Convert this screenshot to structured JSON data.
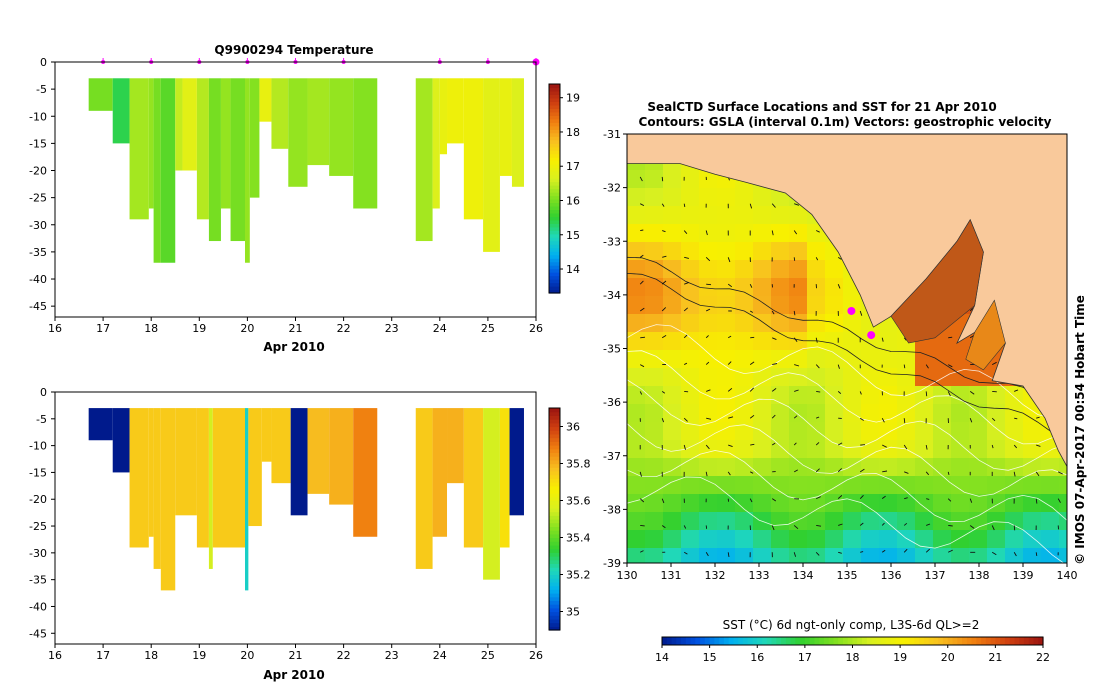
{
  "colors": {
    "background": "#ffffff",
    "land": "#f9c99b",
    "marker": "#ff00ff",
    "colormap": [
      "#001a8c",
      "#0050e0",
      "#00b0f0",
      "#20d8b8",
      "#30d030",
      "#80e020",
      "#d8f020",
      "#f8f000",
      "#f8c020",
      "#f08010",
      "#d04010",
      "#9a1410"
    ]
  },
  "chart_data": [
    {
      "type": "heatmap",
      "title": "Q9900294  Temperature",
      "xlabel": "Apr 2010",
      "ylabel": "",
      "xticks": [
        "16",
        "17",
        "18",
        "19",
        "20",
        "21",
        "22",
        "23",
        "24",
        "25",
        "26"
      ],
      "xlim": [
        16,
        26
      ],
      "yticks": [
        "0",
        "-5",
        "-10",
        "-15",
        "-20",
        "-25",
        "-30",
        "-35",
        "-40",
        "-45"
      ],
      "ylim": [
        -47,
        0
      ],
      "profile_days": [
        17,
        18,
        19,
        20,
        21,
        22,
        24,
        25,
        26
      ],
      "colorbar": {
        "ticks": [
          "14",
          "15",
          "16",
          "17",
          "18",
          "19"
        ],
        "range": [
          13.3,
          19.4
        ]
      },
      "columns": [
        {
          "x0": 16.7,
          "x1": 17.2,
          "depth": 9,
          "value": 16.0
        },
        {
          "x0": 17.2,
          "x1": 17.55,
          "depth": 15,
          "value": 15.4
        },
        {
          "x0": 17.55,
          "x1": 17.95,
          "depth": 29,
          "value": 16.3
        },
        {
          "x0": 17.95,
          "x1": 18.05,
          "depth": 27,
          "value": 16.2
        },
        {
          "x0": 18.05,
          "x1": 18.2,
          "depth": 37,
          "value": 16.0
        },
        {
          "x0": 18.2,
          "x1": 18.5,
          "depth": 37,
          "value": 15.8
        },
        {
          "x0": 18.5,
          "x1": 18.65,
          "depth": 20,
          "value": 16.5
        },
        {
          "x0": 18.65,
          "x1": 18.95,
          "depth": 20,
          "value": 16.8
        },
        {
          "x0": 18.95,
          "x1": 19.2,
          "depth": 29,
          "value": 16.4
        },
        {
          "x0": 19.2,
          "x1": 19.45,
          "depth": 33,
          "value": 16.0
        },
        {
          "x0": 19.45,
          "x1": 19.65,
          "depth": 27,
          "value": 16.2
        },
        {
          "x0": 19.65,
          "x1": 19.95,
          "depth": 33,
          "value": 16.0
        },
        {
          "x0": 19.95,
          "x1": 20.05,
          "depth": 37,
          "value": 16.2
        },
        {
          "x0": 20.05,
          "x1": 20.25,
          "depth": 25,
          "value": 16.1
        },
        {
          "x0": 20.25,
          "x1": 20.5,
          "depth": 11,
          "value": 16.9
        },
        {
          "x0": 20.5,
          "x1": 20.85,
          "depth": 16,
          "value": 16.4
        },
        {
          "x0": 20.85,
          "x1": 21.25,
          "depth": 23,
          "value": 16.2
        },
        {
          "x0": 21.25,
          "x1": 21.7,
          "depth": 19,
          "value": 16.3
        },
        {
          "x0": 21.7,
          "x1": 22.2,
          "depth": 21,
          "value": 16.2
        },
        {
          "x0": 22.2,
          "x1": 22.7,
          "depth": 27,
          "value": 16.1
        },
        {
          "x0": 23.5,
          "x1": 23.85,
          "depth": 33,
          "value": 16.3
        },
        {
          "x0": 23.85,
          "x1": 24.0,
          "depth": 27,
          "value": 16.7
        },
        {
          "x0": 24.0,
          "x1": 24.15,
          "depth": 17,
          "value": 16.9
        },
        {
          "x0": 24.15,
          "x1": 24.5,
          "depth": 15,
          "value": 17.0
        },
        {
          "x0": 24.5,
          "x1": 24.9,
          "depth": 29,
          "value": 17.0
        },
        {
          "x0": 24.9,
          "x1": 25.25,
          "depth": 35,
          "value": 16.8
        },
        {
          "x0": 25.25,
          "x1": 25.5,
          "depth": 21,
          "value": 16.9
        },
        {
          "x0": 25.5,
          "x1": 25.75,
          "depth": 23,
          "value": 16.7
        }
      ]
    },
    {
      "type": "heatmap",
      "title": "",
      "xlabel": "Apr 2010",
      "ylabel": "",
      "xticks": [
        "16",
        "17",
        "18",
        "19",
        "20",
        "21",
        "22",
        "23",
        "24",
        "25",
        "26"
      ],
      "xlim": [
        16,
        26
      ],
      "yticks": [
        "0",
        "-5",
        "-10",
        "-15",
        "-20",
        "-25",
        "-30",
        "-35",
        "-40",
        "-45"
      ],
      "ylim": [
        -47,
        0
      ],
      "colorbar": {
        "ticks": [
          "35",
          "35.2",
          "35.4",
          "35.6",
          "35.8",
          "36"
        ],
        "range": [
          34.9,
          36.1
        ]
      },
      "columns": [
        {
          "x0": 16.7,
          "x1": 17.2,
          "depth": 9,
          "value": 34.9
        },
        {
          "x0": 17.2,
          "x1": 17.55,
          "depth": 15,
          "value": 34.9
        },
        {
          "x0": 17.55,
          "x1": 17.95,
          "depth": 29,
          "value": 35.75
        },
        {
          "x0": 17.95,
          "x1": 18.05,
          "depth": 27,
          "value": 35.75
        },
        {
          "x0": 18.05,
          "x1": 18.2,
          "depth": 33,
          "value": 35.75
        },
        {
          "x0": 18.2,
          "x1": 18.5,
          "depth": 37,
          "value": 35.75
        },
        {
          "x0": 18.5,
          "x1": 18.95,
          "depth": 23,
          "value": 35.75
        },
        {
          "x0": 18.95,
          "x1": 19.2,
          "depth": 29,
          "value": 35.75
        },
        {
          "x0": 19.2,
          "x1": 19.28,
          "depth": 33,
          "value": 35.55
        },
        {
          "x0": 19.28,
          "x1": 19.95,
          "depth": 29,
          "value": 35.75
        },
        {
          "x0": 19.95,
          "x1": 20.02,
          "depth": 37,
          "value": 35.2
        },
        {
          "x0": 20.02,
          "x1": 20.3,
          "depth": 25,
          "value": 35.75
        },
        {
          "x0": 20.3,
          "x1": 20.5,
          "depth": 13,
          "value": 35.75
        },
        {
          "x0": 20.5,
          "x1": 20.9,
          "depth": 17,
          "value": 35.75
        },
        {
          "x0": 20.9,
          "x1": 21.25,
          "depth": 23,
          "value": 34.9
        },
        {
          "x0": 21.25,
          "x1": 21.7,
          "depth": 19,
          "value": 35.78
        },
        {
          "x0": 21.7,
          "x1": 22.2,
          "depth": 21,
          "value": 35.8
        },
        {
          "x0": 22.2,
          "x1": 22.7,
          "depth": 27,
          "value": 35.88
        },
        {
          "x0": 23.5,
          "x1": 23.85,
          "depth": 33,
          "value": 35.75
        },
        {
          "x0": 23.85,
          "x1": 24.15,
          "depth": 27,
          "value": 35.8
        },
        {
          "x0": 24.15,
          "x1": 24.5,
          "depth": 17,
          "value": 35.8
        },
        {
          "x0": 24.5,
          "x1": 24.9,
          "depth": 29,
          "value": 35.75
        },
        {
          "x0": 24.9,
          "x1": 25.25,
          "depth": 35,
          "value": 35.55
        },
        {
          "x0": 25.25,
          "x1": 25.45,
          "depth": 29,
          "value": 35.7
        },
        {
          "x0": 25.45,
          "x1": 25.75,
          "depth": 23,
          "value": 34.9
        }
      ]
    },
    {
      "type": "heatmap",
      "title": "SealCTD Surface Locations and SST for 21 Apr 2010",
      "subtitle": "Contours: GSLA (interval 0.1m) Vectors: geostrophic velocity",
      "xlabel": "",
      "ylabel": "",
      "xticks": [
        "130",
        "131",
        "132",
        "133",
        "134",
        "135",
        "136",
        "137",
        "138",
        "139",
        "140"
      ],
      "xlim": [
        130,
        140
      ],
      "yticks": [
        "-31",
        "-32",
        "-33",
        "-34",
        "-35",
        "-36",
        "-37",
        "-38",
        "-39"
      ],
      "ylim": [
        -39,
        -31
      ],
      "colorbar": {
        "label": "SST (°C) 6d ngt-only comp, L3S-6d QL>=2",
        "ticks": [
          "14",
          "15",
          "16",
          "17",
          "18",
          "19",
          "20",
          "21",
          "22"
        ],
        "range": [
          14,
          22
        ]
      },
      "side_label": "© IMOS 07-Apr-2017 00:54 Hobart Time",
      "seal_locations": {
        "lon": [
          135.1,
          135.55
        ],
        "lat": [
          -34.3,
          -34.75
        ]
      },
      "coastline": [
        [
          132.7,
          -31.9
        ],
        [
          133.6,
          -32.1
        ],
        [
          134.2,
          -32.5
        ],
        [
          134.8,
          -33.2
        ],
        [
          135.3,
          -34.0
        ],
        [
          135.6,
          -34.6
        ],
        [
          136.0,
          -34.4
        ],
        [
          136.8,
          -33.7
        ],
        [
          137.5,
          -33.0
        ],
        [
          137.8,
          -32.6
        ],
        [
          138.1,
          -33.2
        ],
        [
          137.9,
          -34.2
        ],
        [
          137.5,
          -34.9
        ],
        [
          137.9,
          -34.7
        ],
        [
          138.6,
          -34.9
        ],
        [
          138.3,
          -35.6
        ],
        [
          139.0,
          -35.7
        ],
        [
          139.5,
          -36.3
        ],
        [
          139.8,
          -36.9
        ],
        [
          140.0,
          -37.2
        ]
      ]
    }
  ]
}
